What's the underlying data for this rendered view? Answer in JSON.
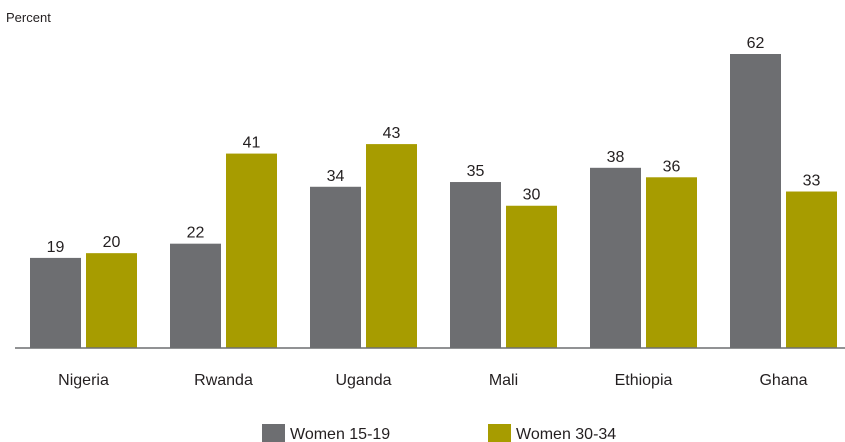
{
  "chart_data": {
    "type": "bar",
    "unit_label": "Percent",
    "categories": [
      "Nigeria",
      "Rwanda",
      "Uganda",
      "Mali",
      "Ethiopia",
      "Ghana"
    ],
    "series": [
      {
        "name": "Women 15-19",
        "color": "#6d6e71",
        "values": [
          19,
          22,
          34,
          35,
          38,
          62
        ]
      },
      {
        "name": "Women 30-34",
        "color": "#a79c00",
        "values": [
          20,
          41,
          43,
          30,
          36,
          33
        ]
      }
    ],
    "ylim": [
      0,
      65
    ],
    "grid": false,
    "legend_position": "bottom"
  }
}
